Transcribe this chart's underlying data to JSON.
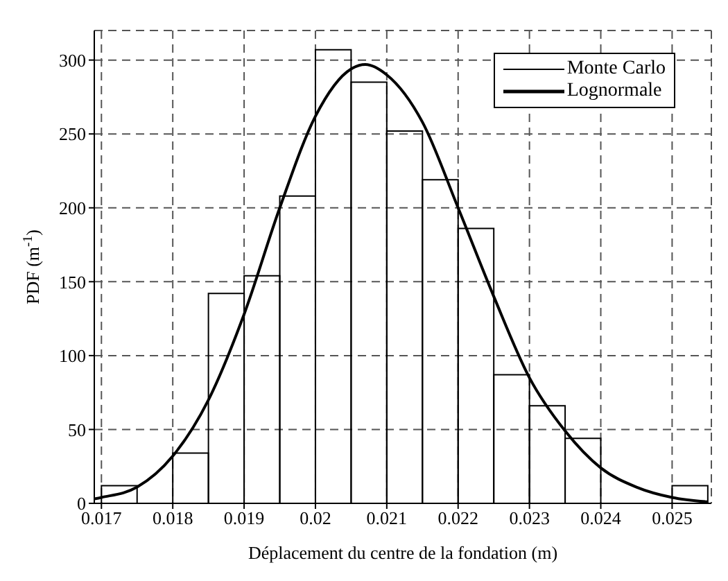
{
  "chart_data": {
    "type": "histogram",
    "xlabel": "Déplacement du centre de la fondation (m)",
    "ylabel": "PDF (m$^{-1}$)",
    "bins": [
      0.017,
      0.0175,
      0.018,
      0.0185,
      0.019,
      0.0195,
      0.02,
      0.0205,
      0.021,
      0.0215,
      0.022,
      0.0225,
      0.023,
      0.0235,
      0.024,
      0.0245,
      0.025,
      0.0255
    ],
    "series": [
      {
        "name": "Monte Carlo",
        "color": "#000000",
        "values": [
          12,
          0,
          34,
          142,
          154,
          208,
          307,
          285,
          252,
          219,
          186,
          87,
          66,
          44,
          0,
          0,
          12
        ]
      },
      {
        "name": "Lognormale",
        "type": "line",
        "color": "#000000",
        "x": [
          0.0169,
          0.017,
          0.0175,
          0.018,
          0.0185,
          0.019,
          0.0195,
          0.02,
          0.0205,
          0.0207,
          0.021,
          0.0215,
          0.022,
          0.0225,
          0.023,
          0.0235,
          0.024,
          0.0245,
          0.025,
          0.0255
        ],
        "values": [
          3,
          4,
          11,
          32,
          70,
          128,
          200,
          262,
          294,
          297,
          290,
          258,
          200,
          140,
          85,
          49,
          24,
          11,
          4,
          1
        ]
      }
    ],
    "xlim": [
      0.0169,
      0.02555
    ],
    "xticks": [
      0.017,
      0.018,
      0.019,
      0.02,
      0.021,
      0.022,
      0.023,
      0.024,
      0.025
    ],
    "ylim": [
      0,
      320
    ],
    "yticks": [
      0,
      50,
      100,
      150,
      200,
      250,
      300
    ],
    "grid": true,
    "legend": "top right",
    "line_style": "solid",
    "marker": "none"
  }
}
